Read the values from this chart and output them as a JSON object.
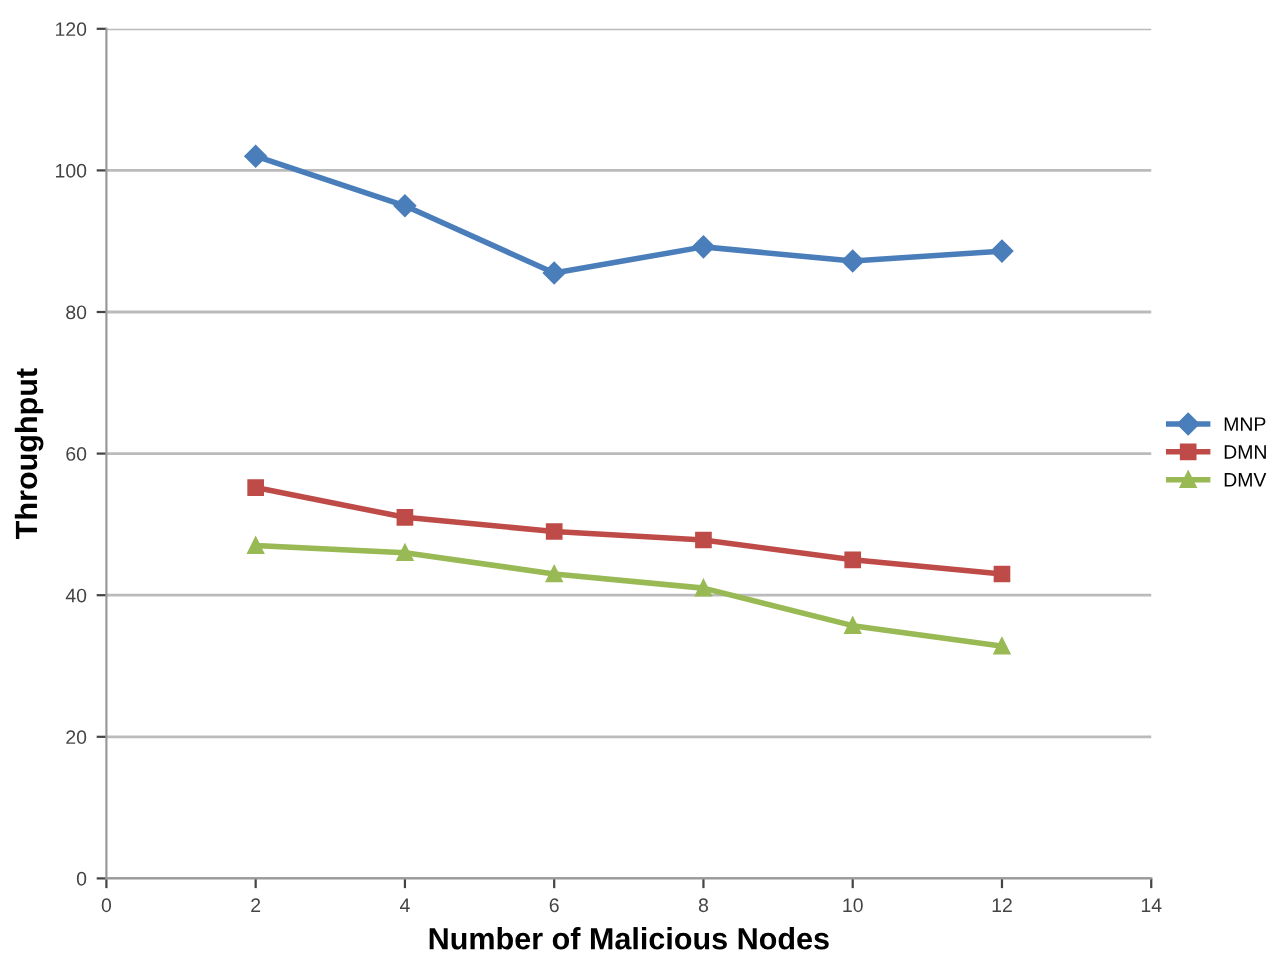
{
  "chart_data": {
    "type": "line",
    "xlabel": "Number of Malicious Nodes",
    "ylabel": "Throughput",
    "x": [
      2,
      4,
      6,
      8,
      10,
      12
    ],
    "series": [
      {
        "name": "MNP",
        "color": "#4a7ebb",
        "marker": "diamond",
        "values": [
          102,
          95,
          85.5,
          89.2,
          87.2,
          88.6
        ]
      },
      {
        "name": "DMN",
        "color": "#be4b48",
        "marker": "square",
        "values": [
          55.2,
          51,
          49,
          47.8,
          45,
          43
        ]
      },
      {
        "name": "DMV",
        "color": "#98b954",
        "marker": "triangle",
        "values": [
          47,
          46,
          43,
          41,
          35.7,
          32.8
        ]
      }
    ],
    "xlim": [
      0,
      14
    ],
    "xticks": [
      0,
      2,
      4,
      6,
      8,
      10,
      12,
      14
    ],
    "ylim": [
      0,
      120
    ],
    "yticks": [
      0,
      20,
      40,
      60,
      80,
      100,
      120
    ],
    "grid": "y",
    "legend": "right"
  }
}
